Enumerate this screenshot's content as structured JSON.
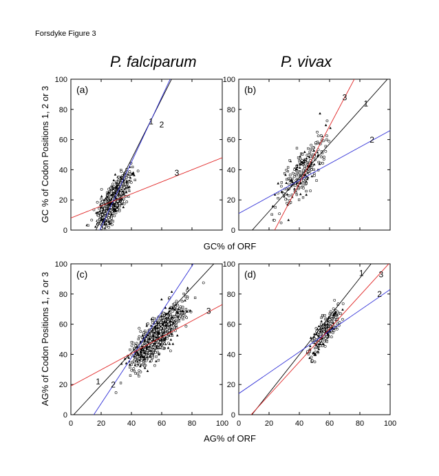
{
  "figure_label": "Forsdyke Figure 3",
  "species": [
    "P. falciparum",
    "P. vivax"
  ],
  "shared_labels": {
    "top_ylabel": "GC % of Codon Positions 1, 2 or 3",
    "top_xlabel": "GC% of ORF",
    "bottom_ylabel": "AG% of Codon Positions 1, 2 or 3",
    "bottom_xlabel": "AG% of ORF"
  },
  "colors": {
    "line1": "#000000",
    "line2": "#2b2bd6",
    "line3": "#e02020"
  },
  "chart_data": [
    {
      "type": "scatter",
      "panel": "(a)",
      "species": "P. falciparum",
      "xlim": [
        0,
        100
      ],
      "ylim": [
        0,
        100
      ],
      "xticks": [
        0,
        20,
        40,
        60,
        80,
        100
      ],
      "yticks": [
        0,
        20,
        40,
        60,
        80,
        100
      ],
      "cluster": {
        "x_center": 28,
        "y_center": 20,
        "x_spread": 5,
        "y_spread": 8
      },
      "series": [
        {
          "name": "1",
          "slope": 2.0,
          "intercept": -33
        },
        {
          "name": "2",
          "slope": 2.15,
          "intercept": -41
        },
        {
          "name": "3",
          "slope": 0.4,
          "intercept": 8
        }
      ],
      "line_labels": [
        {
          "name": "1",
          "x": 53,
          "y": 70
        },
        {
          "name": "2",
          "x": 60,
          "y": 68
        },
        {
          "name": "3",
          "x": 70,
          "y": 36
        }
      ]
    },
    {
      "type": "scatter",
      "panel": "(b)",
      "species": "P. vivax",
      "xlim": [
        0,
        100
      ],
      "ylim": [
        0,
        100
      ],
      "xticks": [
        0,
        20,
        40,
        60,
        80,
        100
      ],
      "yticks": [
        0,
        20,
        40,
        60,
        80,
        100
      ],
      "cluster": {
        "x_center": 43,
        "y_center": 40,
        "x_spread": 8,
        "y_spread": 12
      },
      "series": [
        {
          "name": "1",
          "slope": 1.12,
          "intercept": -10
        },
        {
          "name": "2",
          "slope": 0.55,
          "intercept": 11
        },
        {
          "name": "3",
          "slope": 1.9,
          "intercept": -45
        }
      ],
      "line_labels": [
        {
          "name": "3",
          "x": 70,
          "y": 86
        },
        {
          "name": "1",
          "x": 84,
          "y": 82
        },
        {
          "name": "2",
          "x": 88,
          "y": 58
        }
      ]
    },
    {
      "type": "scatter",
      "panel": "(c)",
      "species": "P. falciparum",
      "xlim": [
        0,
        100
      ],
      "ylim": [
        0,
        100
      ],
      "xticks": [
        0,
        20,
        40,
        60,
        80,
        100
      ],
      "yticks": [
        0,
        20,
        40,
        60,
        80,
        100
      ],
      "cluster": {
        "x_center": 57,
        "y_center": 52,
        "x_spread": 8,
        "y_spread": 10
      },
      "series": [
        {
          "name": "1",
          "slope": 1.08,
          "intercept": -2
        },
        {
          "name": "2",
          "slope": 1.52,
          "intercept": -23
        },
        {
          "name": "3",
          "slope": 0.54,
          "intercept": 19
        }
      ],
      "line_labels": [
        {
          "name": "1",
          "x": 18,
          "y": 20
        },
        {
          "name": "2",
          "x": 28,
          "y": 18
        },
        {
          "name": "3",
          "x": 91,
          "y": 67
        }
      ]
    },
    {
      "type": "scatter",
      "panel": "(d)",
      "species": "P. vivax",
      "xlim": [
        0,
        100
      ],
      "ylim": [
        0,
        100
      ],
      "xticks": [
        0,
        20,
        40,
        60,
        80,
        100
      ],
      "yticks": [
        0,
        20,
        40,
        60,
        80,
        100
      ],
      "cluster": {
        "x_center": 57,
        "y_center": 55,
        "x_spread": 5,
        "y_spread": 8
      },
      "series": [
        {
          "name": "1",
          "slope": 1.27,
          "intercept": -11
        },
        {
          "name": "2",
          "slope": 0.69,
          "intercept": 14
        },
        {
          "name": "3",
          "slope": 1.1,
          "intercept": -9
        }
      ],
      "line_labels": [
        {
          "name": "1",
          "x": 81,
          "y": 92
        },
        {
          "name": "3",
          "x": 94,
          "y": 91
        },
        {
          "name": "2",
          "x": 93,
          "y": 78
        }
      ]
    }
  ]
}
